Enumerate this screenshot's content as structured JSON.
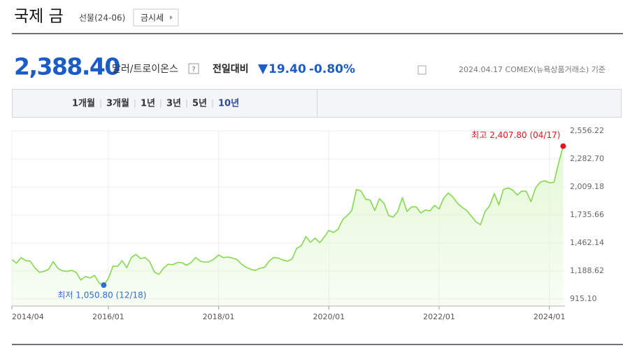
{
  "header": {
    "title": "국제 금",
    "subtitle": "선물(24-06)",
    "button": "금시세"
  },
  "quote": {
    "price": "2,388.40",
    "unit": "달러/트로이온스",
    "help": "?",
    "change_label": "전일대비",
    "change": "19.40",
    "change_percent": "-0.80%",
    "source": "2024.04.17 COMEX(뉴욕상품거래소) 기준"
  },
  "tabs": {
    "items": [
      "1개월",
      "3개월",
      "1년",
      "3년",
      "5년",
      "10년"
    ],
    "selected": 5
  },
  "chart_data": {
    "type": "area",
    "x": [
      "2014/04",
      "2014/05",
      "2014/06",
      "2014/07",
      "2014/08",
      "2014/09",
      "2014/10",
      "2014/11",
      "2014/12",
      "2015/01",
      "2015/02",
      "2015/03",
      "2015/04",
      "2015/05",
      "2015/06",
      "2015/07",
      "2015/08",
      "2015/09",
      "2015/10",
      "2015/11",
      "2015/12",
      "2016/01",
      "2016/02",
      "2016/03",
      "2016/04",
      "2016/05",
      "2016/06",
      "2016/07",
      "2016/08",
      "2016/09",
      "2016/10",
      "2016/11",
      "2016/12",
      "2017/01",
      "2017/02",
      "2017/03",
      "2017/04",
      "2017/05",
      "2017/06",
      "2017/07",
      "2017/08",
      "2017/09",
      "2017/10",
      "2017/11",
      "2017/12",
      "2018/01",
      "2018/02",
      "2018/03",
      "2018/04",
      "2018/05",
      "2018/06",
      "2018/07",
      "2018/08",
      "2018/09",
      "2018/10",
      "2018/11",
      "2018/12",
      "2019/01",
      "2019/02",
      "2019/03",
      "2019/04",
      "2019/05",
      "2019/06",
      "2019/07",
      "2019/08",
      "2019/09",
      "2019/10",
      "2019/11",
      "2019/12",
      "2020/01",
      "2020/02",
      "2020/03",
      "2020/04",
      "2020/05",
      "2020/06",
      "2020/07",
      "2020/08",
      "2020/09",
      "2020/10",
      "2020/11",
      "2020/12",
      "2021/01",
      "2021/02",
      "2021/03",
      "2021/04",
      "2021/05",
      "2021/06",
      "2021/07",
      "2021/08",
      "2021/09",
      "2021/10",
      "2021/11",
      "2021/12",
      "2022/01",
      "2022/02",
      "2022/03",
      "2022/04",
      "2022/05",
      "2022/06",
      "2022/07",
      "2022/08",
      "2022/09",
      "2022/10",
      "2022/11",
      "2022/12",
      "2023/01",
      "2023/02",
      "2023/03",
      "2023/04",
      "2023/05",
      "2023/06",
      "2023/07",
      "2023/08",
      "2023/09",
      "2023/10",
      "2023/11",
      "2023/12",
      "2024/01",
      "2024/02",
      "2024/03",
      "2024/04"
    ],
    "values": [
      1300,
      1265,
      1320,
      1290,
      1285,
      1220,
      1175,
      1185,
      1205,
      1280,
      1215,
      1190,
      1185,
      1195,
      1175,
      1100,
      1135,
      1120,
      1145,
      1070,
      1050.8,
      1115,
      1235,
      1235,
      1290,
      1220,
      1320,
      1350,
      1310,
      1320,
      1280,
      1180,
      1155,
      1215,
      1255,
      1250,
      1270,
      1270,
      1245,
      1270,
      1320,
      1285,
      1275,
      1280,
      1305,
      1345,
      1320,
      1325,
      1315,
      1300,
      1255,
      1225,
      1205,
      1195,
      1215,
      1225,
      1285,
      1320,
      1315,
      1295,
      1285,
      1305,
      1410,
      1435,
      1525,
      1470,
      1510,
      1465,
      1520,
      1585,
      1565,
      1595,
      1690,
      1730,
      1780,
      1985,
      1970,
      1890,
      1880,
      1780,
      1895,
      1850,
      1730,
      1715,
      1770,
      1905,
      1770,
      1815,
      1815,
      1755,
      1785,
      1775,
      1830,
      1795,
      1900,
      1950,
      1910,
      1850,
      1810,
      1780,
      1725,
      1670,
      1640,
      1770,
      1825,
      1945,
      1835,
      1985,
      2000,
      1980,
      1930,
      1970,
      1965,
      1865,
      2000,
      2055,
      2070,
      2050,
      2055,
      2240,
      2407.8
    ],
    "color": "#84d94e",
    "fill": "#e4f8d6",
    "ylim": [
      915.1,
      2556.22
    ],
    "yticks": [
      {
        "value": 915.1,
        "label": "915.10"
      },
      {
        "value": 1188.62,
        "label": "1,188.62"
      },
      {
        "value": 1462.14,
        "label": "1,462.14"
      },
      {
        "value": 1735.66,
        "label": "1,735.66"
      },
      {
        "value": 2009.18,
        "label": "2,009.18"
      },
      {
        "value": 2282.7,
        "label": "2,282.70"
      },
      {
        "value": 2556.22,
        "label": "2,556.22"
      }
    ],
    "xticks": [
      "2014/04",
      "2016/01",
      "2018/01",
      "2020/01",
      "2022/01",
      "2024/01"
    ],
    "grid": true,
    "annotations": [
      {
        "text": "최고 2,407.80 (04/17)",
        "value": 2407.8,
        "color": "#e5141a"
      },
      {
        "text": "최저 1,050.80 (12/18)",
        "value": 1050.8,
        "color": "#2b6fd6"
      }
    ]
  }
}
